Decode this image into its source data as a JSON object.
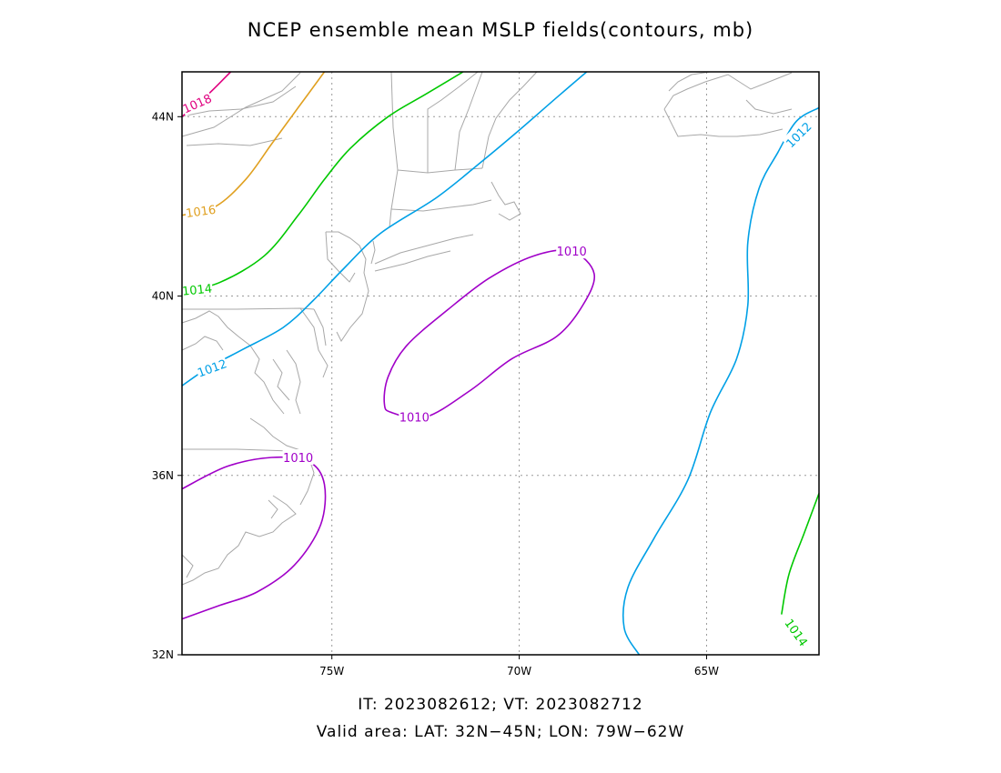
{
  "title": "NCEP ensemble mean MSLP fields(contours, mb)",
  "footer": {
    "line1": "IT: 2023082612; VT: 2023082712",
    "line2": "Valid area: LAT: 32N−45N; LON: 79W−62W"
  },
  "chart_data": {
    "type": "contour",
    "title": "NCEP ensemble mean MSLP fields(contours, mb)",
    "units": "mb",
    "xlim": [
      -79,
      -62
    ],
    "ylim": [
      32,
      45
    ],
    "grid": true,
    "x_ticks": [
      {
        "value": -75,
        "label": "75W"
      },
      {
        "value": -70,
        "label": "70W"
      },
      {
        "value": -65,
        "label": "65W"
      }
    ],
    "y_ticks": [
      {
        "value": 32,
        "label": "32N"
      },
      {
        "value": 36,
        "label": "36N"
      },
      {
        "value": 40,
        "label": "40N"
      },
      {
        "value": 44,
        "label": "44N"
      }
    ],
    "contours": [
      {
        "level": 1018,
        "label": "1018",
        "color": "#e0007f",
        "points": [
          [
            -79,
            44.0
          ],
          [
            -78.3,
            44.5
          ],
          [
            -77.7,
            45.0
          ]
        ],
        "labels": [
          {
            "text": "1018",
            "at": [
              -78.6,
              44.3
            ],
            "angle": -24
          }
        ]
      },
      {
        "level": 1016,
        "label": "1016",
        "color": "#e0a020",
        "points": [
          [
            -79,
            41.8
          ],
          [
            -78.1,
            42.0
          ],
          [
            -77.3,
            42.6
          ],
          [
            -76.6,
            43.4
          ],
          [
            -75.9,
            44.2
          ],
          [
            -75.2,
            45.0
          ]
        ],
        "labels": [
          {
            "text": "1016",
            "at": [
              -78.5,
              41.9
            ],
            "angle": -8
          }
        ]
      },
      {
        "level": 1014,
        "label": "1014",
        "color": "#00c800",
        "points": [
          [
            -79,
            40.1
          ],
          [
            -78.0,
            40.3
          ],
          [
            -76.8,
            40.9
          ],
          [
            -75.9,
            41.8
          ],
          [
            -75.2,
            42.6
          ],
          [
            -74.5,
            43.3
          ],
          [
            -73.5,
            44.0
          ],
          [
            -72.5,
            44.5
          ],
          [
            -71.5,
            45.0
          ]
        ],
        "labels": [
          {
            "text": "1014",
            "at": [
              -78.6,
              40.15
            ],
            "angle": -6
          }
        ]
      },
      {
        "level": 1014,
        "label": "1014",
        "color": "#00c800",
        "points": [
          [
            -63.0,
            32.9
          ],
          [
            -62.8,
            33.8
          ],
          [
            -62.4,
            34.7
          ],
          [
            -62.0,
            35.6
          ]
        ],
        "labels": [
          {
            "text": "1014",
            "at": [
              -62.6,
              32.5
            ],
            "angle": 55
          }
        ]
      },
      {
        "level": 1012,
        "label": "1012",
        "color": "#00a0e6",
        "points": [
          [
            -79,
            38.0
          ],
          [
            -78.3,
            38.4
          ],
          [
            -77.4,
            38.8
          ],
          [
            -76.3,
            39.3
          ],
          [
            -75.5,
            39.9
          ],
          [
            -74.7,
            40.6
          ],
          [
            -73.7,
            41.4
          ],
          [
            -72.2,
            42.2
          ],
          [
            -71.0,
            43.0
          ],
          [
            -70.0,
            43.7
          ],
          [
            -68.9,
            44.5
          ],
          [
            -68.2,
            45.0
          ]
        ],
        "labels": [
          {
            "text": "1012",
            "at": [
              -78.2,
              38.4
            ],
            "angle": -20
          }
        ]
      },
      {
        "level": 1012,
        "label": "1012",
        "color": "#00a0e6",
        "points": [
          [
            -66.8,
            32.0
          ],
          [
            -67.2,
            32.6
          ],
          [
            -67.1,
            33.5
          ],
          [
            -66.4,
            34.6
          ],
          [
            -65.5,
            35.9
          ],
          [
            -64.9,
            37.4
          ],
          [
            -64.2,
            38.6
          ],
          [
            -63.9,
            39.8
          ],
          [
            -63.9,
            41.2
          ],
          [
            -63.6,
            42.4
          ],
          [
            -63.1,
            43.2
          ],
          [
            -62.6,
            43.9
          ],
          [
            -62.0,
            44.2
          ]
        ],
        "labels": [
          {
            "text": "1012",
            "at": [
              -62.55,
              43.6
            ],
            "angle": -45
          }
        ]
      },
      {
        "level": 1010,
        "label": "1010",
        "color": "#a000c8",
        "closed": true,
        "points": [
          [
            -73.4,
            37.4
          ],
          [
            -72.5,
            37.3
          ],
          [
            -71.3,
            37.9
          ],
          [
            -70.2,
            38.6
          ],
          [
            -69.0,
            39.1
          ],
          [
            -68.3,
            39.8
          ],
          [
            -68.0,
            40.5
          ],
          [
            -68.6,
            41.0
          ],
          [
            -69.6,
            40.9
          ],
          [
            -70.8,
            40.4
          ],
          [
            -71.9,
            39.7
          ],
          [
            -73.0,
            38.9
          ],
          [
            -73.5,
            38.2
          ],
          [
            -73.6,
            37.6
          ]
        ],
        "labels": [
          {
            "text": "1010",
            "at": [
              -72.8,
              37.3
            ],
            "angle": 0
          },
          {
            "text": "1010",
            "at": [
              -68.6,
              41.0
            ],
            "angle": 0
          }
        ]
      },
      {
        "level": 1010,
        "label": "1010",
        "color": "#a000c8",
        "points": [
          [
            -79,
            35.7
          ],
          [
            -77.8,
            36.2
          ],
          [
            -76.6,
            36.4
          ],
          [
            -75.6,
            36.3
          ],
          [
            -75.2,
            35.8
          ],
          [
            -75.3,
            34.9
          ],
          [
            -76.0,
            34.0
          ],
          [
            -77.0,
            33.4
          ],
          [
            -78.0,
            33.1
          ],
          [
            -79,
            32.8
          ]
        ],
        "labels": [
          {
            "text": "1010",
            "at": [
              -75.9,
              36.4
            ],
            "angle": 0
          }
        ]
      }
    ]
  }
}
